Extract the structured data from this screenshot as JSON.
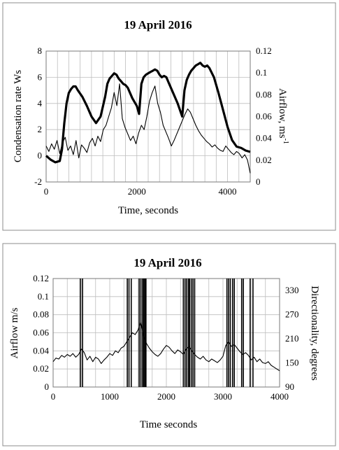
{
  "chart_data": [
    {
      "type": "line",
      "title": "19 April 2016",
      "xlabel": "Time, seconds",
      "ylabel": "Condensation rate Ws",
      "y2label": "Airflow, ms",
      "y2label_superscript": "-1",
      "xlim": [
        0,
        4500
      ],
      "ylim": [
        -2,
        8
      ],
      "y2lim": [
        0,
        0.12
      ],
      "x_ticks": [
        "0",
        "2000",
        "4000"
      ],
      "y_ticks": [
        "-2",
        "0",
        "2",
        "4",
        "6",
        "8"
      ],
      "y2_ticks": [
        "0",
        "0.02",
        "0.04",
        "0.06",
        "0.08",
        "0.1",
        "0.12"
      ],
      "grid": true,
      "series": [
        {
          "axis": "left",
          "style": "thick",
          "color": "#000000",
          "x": [
            0,
            100,
            200,
            300,
            350,
            400,
            450,
            500,
            550,
            600,
            650,
            700,
            800,
            900,
            1000,
            1100,
            1200,
            1300,
            1350,
            1400,
            1450,
            1500,
            1550,
            1600,
            1650,
            1700,
            1750,
            1800,
            1900,
            2000,
            2050,
            2100,
            2150,
            2200,
            2250,
            2300,
            2350,
            2400,
            2450,
            2500,
            2550,
            2600,
            2650,
            2700,
            2800,
            2900,
            3000,
            3050,
            3100,
            3150,
            3200,
            3250,
            3300,
            3350,
            3400,
            3450,
            3500,
            3550,
            3600,
            3700,
            3800,
            3900,
            4000,
            4100,
            4200,
            4300,
            4400,
            4500
          ],
          "values": [
            0.0,
            -0.3,
            -0.5,
            -0.4,
            0.5,
            2.5,
            4.0,
            4.8,
            5.1,
            5.3,
            5.3,
            5.0,
            4.5,
            3.8,
            3.0,
            2.5,
            3.0,
            4.5,
            5.5,
            5.9,
            6.1,
            6.3,
            6.2,
            5.9,
            5.7,
            5.5,
            5.4,
            5.2,
            4.4,
            3.8,
            3.2,
            5.5,
            6.0,
            6.2,
            6.3,
            6.4,
            6.5,
            6.6,
            6.5,
            6.2,
            6.0,
            6.1,
            6.0,
            5.6,
            4.8,
            4.0,
            3.0,
            5.0,
            5.8,
            6.2,
            6.5,
            6.7,
            6.9,
            7.0,
            7.1,
            6.9,
            6.8,
            6.9,
            6.7,
            6.0,
            4.8,
            3.5,
            2.2,
            1.2,
            0.7,
            0.6,
            0.4,
            0.3
          ]
        },
        {
          "axis": "right",
          "style": "thin",
          "color": "#000000",
          "x": [
            0,
            60,
            120,
            180,
            240,
            300,
            360,
            420,
            480,
            540,
            600,
            660,
            720,
            780,
            840,
            900,
            960,
            1020,
            1080,
            1140,
            1200,
            1260,
            1320,
            1380,
            1440,
            1500,
            1560,
            1620,
            1680,
            1740,
            1800,
            1860,
            1920,
            1980,
            2040,
            2100,
            2160,
            2220,
            2280,
            2340,
            2400,
            2460,
            2520,
            2580,
            2640,
            2700,
            2760,
            2820,
            2880,
            2940,
            3000,
            3060,
            3120,
            3180,
            3240,
            3300,
            3360,
            3420,
            3480,
            3540,
            3600,
            3660,
            3720,
            3780,
            3840,
            3900,
            3960,
            4020,
            4080,
            4140,
            4200,
            4260,
            4320,
            4380,
            4440,
            4500
          ],
          "values": [
            0.033,
            0.028,
            0.035,
            0.03,
            0.038,
            0.026,
            0.036,
            0.041,
            0.029,
            0.033,
            0.025,
            0.038,
            0.022,
            0.034,
            0.031,
            0.027,
            0.036,
            0.04,
            0.033,
            0.042,
            0.037,
            0.048,
            0.052,
            0.06,
            0.068,
            0.082,
            0.07,
            0.09,
            0.058,
            0.05,
            0.044,
            0.038,
            0.042,
            0.035,
            0.045,
            0.052,
            0.048,
            0.06,
            0.074,
            0.082,
            0.088,
            0.072,
            0.064,
            0.052,
            0.046,
            0.04,
            0.033,
            0.038,
            0.044,
            0.05,
            0.056,
            0.062,
            0.067,
            0.064,
            0.058,
            0.052,
            0.047,
            0.043,
            0.04,
            0.037,
            0.035,
            0.032,
            0.034,
            0.031,
            0.029,
            0.028,
            0.033,
            0.03,
            0.027,
            0.025,
            0.028,
            0.026,
            0.022,
            0.025,
            0.02,
            0.008
          ]
        }
      ]
    },
    {
      "type": "line",
      "title": "19 April 2016",
      "xlabel": "Time seconds",
      "ylabel": "Airflow m/s",
      "y2label": "Directionality, degrees",
      "xlim": [
        0,
        4000
      ],
      "ylim": [
        0,
        0.12
      ],
      "y2lim": [
        90,
        360
      ],
      "x_ticks": [
        "0",
        "1000",
        "2000",
        "3000",
        "4000"
      ],
      "y_ticks": [
        "0",
        "0.02",
        "0.04",
        "0.06",
        "0.08",
        "0.1",
        "0.12"
      ],
      "y2_ticks": [
        "90",
        "150",
        "210",
        "270",
        "330"
      ],
      "grid": true,
      "series": [
        {
          "axis": "left",
          "style": "thin",
          "color": "#000000",
          "x": [
            0,
            50,
            100,
            150,
            200,
            250,
            300,
            350,
            400,
            450,
            500,
            550,
            600,
            650,
            700,
            750,
            800,
            850,
            900,
            950,
            1000,
            1050,
            1100,
            1150,
            1200,
            1250,
            1300,
            1350,
            1400,
            1450,
            1500,
            1550,
            1600,
            1650,
            1700,
            1750,
            1800,
            1850,
            1900,
            1950,
            2000,
            2050,
            2100,
            2150,
            2200,
            2250,
            2300,
            2350,
            2400,
            2450,
            2500,
            2550,
            2600,
            2650,
            2700,
            2750,
            2800,
            2850,
            2900,
            2950,
            3000,
            3050,
            3100,
            3150,
            3200,
            3250,
            3300,
            3350,
            3400,
            3450,
            3500,
            3550,
            3600,
            3650,
            3700,
            3750,
            3800,
            3850,
            3900,
            3950,
            4000
          ],
          "values": [
            0.028,
            0.032,
            0.031,
            0.035,
            0.033,
            0.036,
            0.034,
            0.037,
            0.033,
            0.036,
            0.042,
            0.038,
            0.03,
            0.034,
            0.028,
            0.033,
            0.031,
            0.026,
            0.03,
            0.033,
            0.037,
            0.035,
            0.04,
            0.038,
            0.043,
            0.045,
            0.05,
            0.055,
            0.06,
            0.058,
            0.063,
            0.072,
            0.055,
            0.048,
            0.043,
            0.039,
            0.036,
            0.034,
            0.037,
            0.042,
            0.046,
            0.044,
            0.04,
            0.037,
            0.041,
            0.039,
            0.036,
            0.042,
            0.045,
            0.04,
            0.036,
            0.033,
            0.031,
            0.034,
            0.03,
            0.028,
            0.031,
            0.029,
            0.027,
            0.03,
            0.034,
            0.046,
            0.05,
            0.045,
            0.047,
            0.043,
            0.039,
            0.036,
            0.038,
            0.035,
            0.03,
            0.033,
            0.028,
            0.031,
            0.027,
            0.026,
            0.028,
            0.024,
            0.022,
            0.02,
            0.018
          ]
        },
        {
          "axis": "right",
          "style": "spike",
          "color": "#000000",
          "x": [
            480,
            520,
            1310,
            1340,
            1380,
            1520,
            1550,
            1580,
            1600,
            1620,
            1640,
            2300,
            2330,
            2360,
            2390,
            2410,
            2440,
            2470,
            2500,
            3070,
            3100,
            3130,
            3170,
            3200,
            3330,
            3360,
            3480,
            3530
          ],
          "values": [
            360,
            360,
            360,
            360,
            360,
            360,
            360,
            360,
            360,
            360,
            360,
            360,
            360,
            360,
            360,
            360,
            360,
            360,
            360,
            360,
            360,
            360,
            360,
            360,
            360,
            360,
            360,
            360
          ]
        }
      ]
    }
  ]
}
